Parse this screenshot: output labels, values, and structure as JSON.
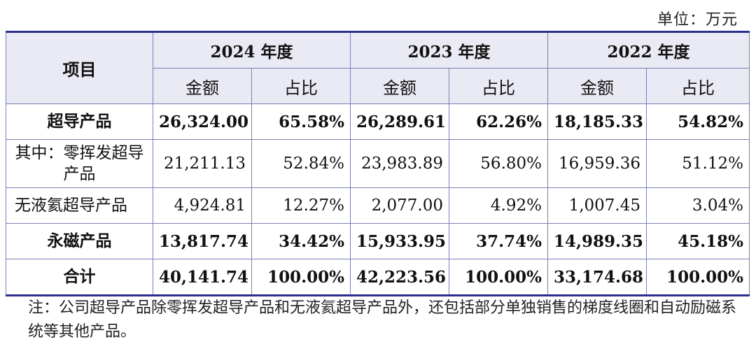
{
  "unit": "单位：万元",
  "header": {
    "item": "项目",
    "years": [
      "2024 年度",
      "2023 年度",
      "2022 年度"
    ],
    "amount": "金额",
    "ratio": "占比"
  },
  "rows": [
    {
      "label": "超导产品",
      "v": [
        "26,324.00",
        "65.58%",
        "26,289.61",
        "62.26%",
        "18,185.33",
        "54.82%"
      ]
    },
    {
      "label": "其中：零挥发超导产品",
      "v": [
        "21,211.13",
        "52.84%",
        "23,983.89",
        "56.80%",
        "16,959.36",
        "51.12%"
      ]
    },
    {
      "label": "无液氦超导产品",
      "v": [
        "4,924.81",
        "12.27%",
        "2,077.00",
        "4.92%",
        "1,007.45",
        "3.04%"
      ]
    },
    {
      "label": "永磁产品",
      "v": [
        "13,817.74",
        "34.42%",
        "15,933.95",
        "37.74%",
        "14,989.35",
        "45.18%"
      ]
    },
    {
      "label": "合计",
      "v": [
        "40,141.74",
        "100.00%",
        "42,223.56",
        "100.00%",
        "33,174.68",
        "100.00%"
      ]
    }
  ],
  "note": "注：公司超导产品除零挥发超导产品和无液氦超导产品外，还包括部分单独销售的梯度线圈和自动励磁系统等其他产品。"
}
